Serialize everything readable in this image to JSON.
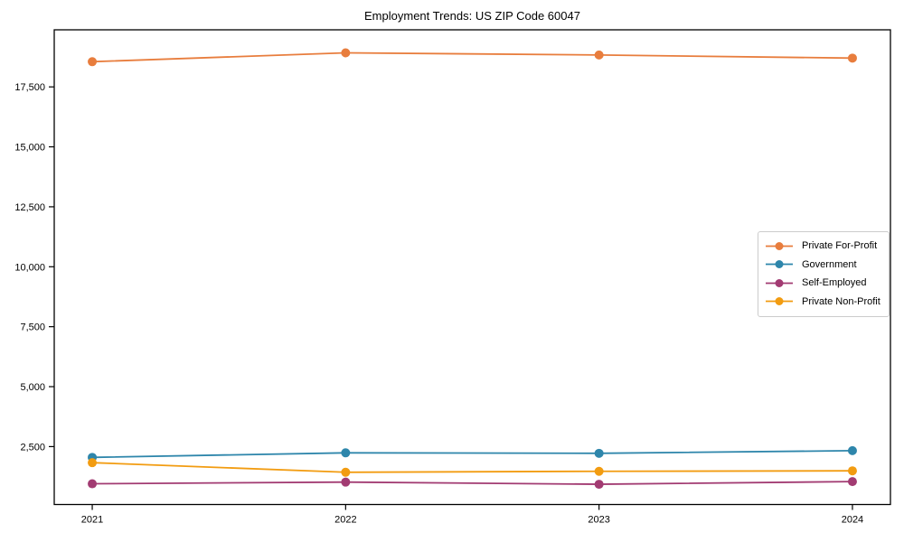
{
  "chart_data": {
    "type": "line",
    "title": "Employment Trends: US ZIP Code 60047",
    "xlabel": "",
    "ylabel": "",
    "x": [
      2021,
      2022,
      2023,
      2024
    ],
    "xtick_labels": [
      "2021",
      "2022",
      "2023",
      "2024"
    ],
    "series": [
      {
        "name": "Private For-Profit",
        "color": "#E87D3D",
        "values": [
          18550,
          18920,
          18830,
          18700
        ]
      },
      {
        "name": "Government",
        "color": "#2E86AB",
        "values": [
          2050,
          2240,
          2220,
          2330
        ]
      },
      {
        "name": "Self-Employed",
        "color": "#A23B72",
        "values": [
          950,
          1020,
          930,
          1040
        ]
      },
      {
        "name": "Private Non-Profit",
        "color": "#F29C11",
        "values": [
          1830,
          1430,
          1470,
          1490
        ]
      }
    ],
    "ytick_values": [
      2500,
      5000,
      7500,
      10000,
      12500,
      15000,
      17500
    ],
    "ytick_labels": [
      "2,500",
      "5,000",
      "7,500",
      "10,000",
      "12,500",
      "15,000",
      "17,500"
    ],
    "xlim": [
      2020.85,
      2024.15
    ],
    "ylim": [
      85,
      19880
    ],
    "grid": false,
    "legend_position": "center right",
    "axis_color": "#000000",
    "background_color": "#ffffff"
  }
}
